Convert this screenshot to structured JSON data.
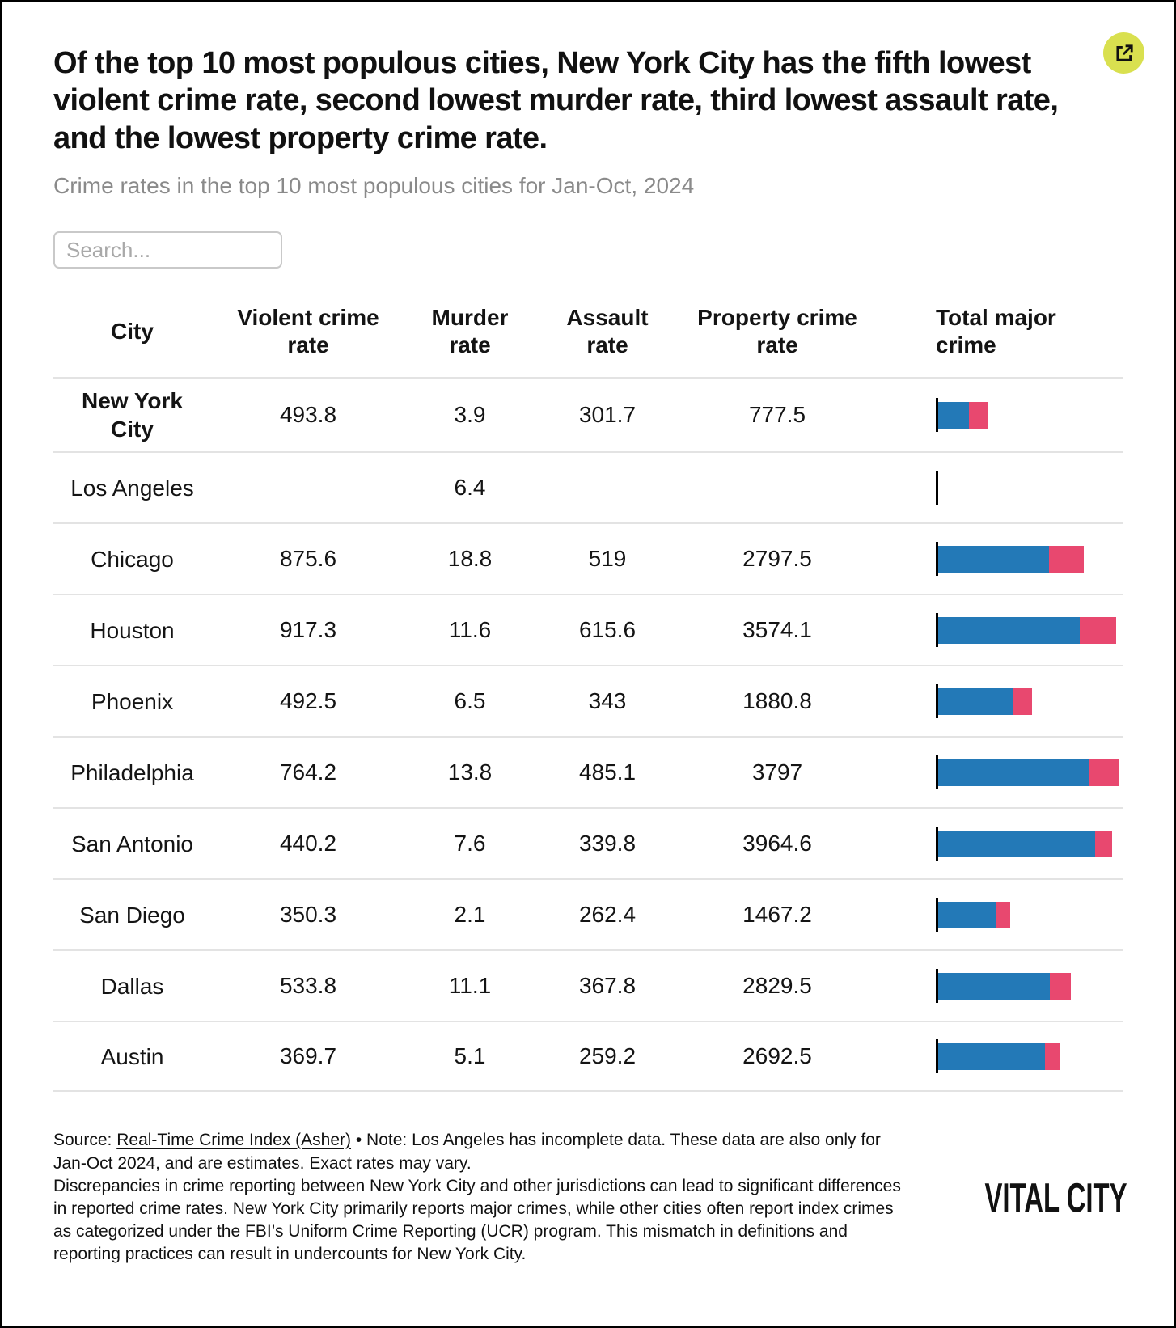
{
  "header": {
    "title": "Of the top 10 most populous cities, New York City has the fifth lowest violent crime rate, second lowest murder rate, third lowest assault rate, and the lowest property crime rate.",
    "subtitle": "Crime rates in the top 10 most populous cities for Jan-Oct, 2024",
    "external_link_icon": "external-link-icon"
  },
  "search": {
    "placeholder": "Search..."
  },
  "colors": {
    "bar_blue": "#2379b7",
    "bar_pink": "#e8486f",
    "button_lime": "#d9e04f",
    "divider": "#e3e3e3"
  },
  "chart_data": {
    "type": "table",
    "title": "Crime rates in the top 10 most populous cities for Jan-Oct, 2024",
    "columns": [
      "City",
      "Violent crime rate",
      "Murder rate",
      "Assault rate",
      "Property crime rate",
      "Total major crime"
    ],
    "bar_series": [
      {
        "name": "Property crime rate",
        "color": "#2379b7"
      },
      {
        "name": "Violent crime rate",
        "color": "#e8486f"
      }
    ],
    "bar_axis_max": 4561.2,
    "rows": [
      {
        "city": "New York City",
        "bold": true,
        "violent_crime_rate": 493.8,
        "murder_rate": 3.9,
        "assault_rate": 301.7,
        "property_crime_rate": 777.5,
        "total_major_crime": 1271.3
      },
      {
        "city": "Los Angeles",
        "violent_crime_rate": null,
        "murder_rate": 6.4,
        "assault_rate": null,
        "property_crime_rate": null,
        "total_major_crime": null
      },
      {
        "city": "Chicago",
        "violent_crime_rate": 875.6,
        "murder_rate": 18.8,
        "assault_rate": 519,
        "property_crime_rate": 2797.5,
        "total_major_crime": 3673.1
      },
      {
        "city": "Houston",
        "violent_crime_rate": 917.3,
        "murder_rate": 11.6,
        "assault_rate": 615.6,
        "property_crime_rate": 3574.1,
        "total_major_crime": 4491.4
      },
      {
        "city": "Phoenix",
        "violent_crime_rate": 492.5,
        "murder_rate": 6.5,
        "assault_rate": 343,
        "property_crime_rate": 1880.8,
        "total_major_crime": 2373.3
      },
      {
        "city": "Philadelphia",
        "violent_crime_rate": 764.2,
        "murder_rate": 13.8,
        "assault_rate": 485.1,
        "property_crime_rate": 3797,
        "total_major_crime": 4561.2
      },
      {
        "city": "San Antonio",
        "violent_crime_rate": 440.2,
        "murder_rate": 7.6,
        "assault_rate": 339.8,
        "property_crime_rate": 3964.6,
        "total_major_crime": 4404.8
      },
      {
        "city": "San Diego",
        "violent_crime_rate": 350.3,
        "murder_rate": 2.1,
        "assault_rate": 262.4,
        "property_crime_rate": 1467.2,
        "total_major_crime": 1817.5
      },
      {
        "city": "Dallas",
        "violent_crime_rate": 533.8,
        "murder_rate": 11.1,
        "assault_rate": 367.8,
        "property_crime_rate": 2829.5,
        "total_major_crime": 3363.3
      },
      {
        "city": "Austin",
        "violent_crime_rate": 369.7,
        "murder_rate": 5.1,
        "assault_rate": 259.2,
        "property_crime_rate": 2692.5,
        "total_major_crime": 3062.2
      }
    ]
  },
  "footer": {
    "source_label": "Source: ",
    "source_link": "Real-Time Crime Index (Asher)",
    "note_rest": " • Note: Los Angeles has incomplete data. These data are also only for Jan-Oct 2024, and are estimates. Exact rates may vary.",
    "disclaimer": "Discrepancies in crime reporting between New York City and other jurisdictions can lead to significant differences in reported crime rates. New York City primarily reports major crimes, while other cities often report index crimes as categorized under the FBI’s Uniform Crime Reporting (UCR) program. This mismatch in definitions and reporting practices can result in undercounts for New York City.",
    "logo": "VITAL CITY"
  }
}
